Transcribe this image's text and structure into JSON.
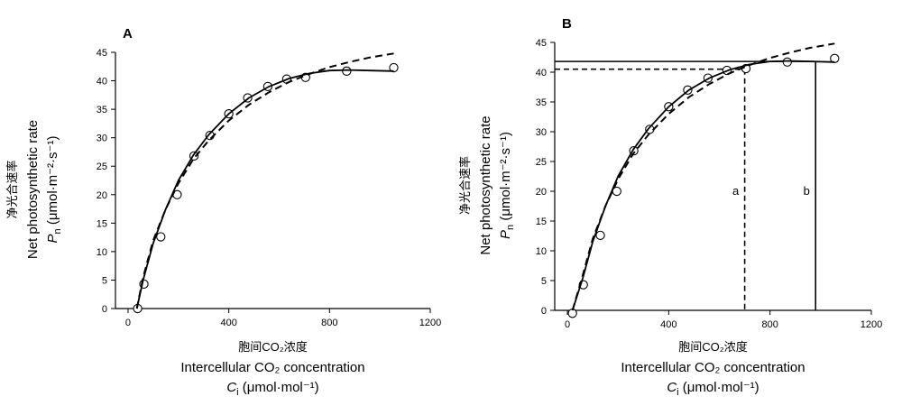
{
  "chart_data": [
    {
      "type": "line",
      "panel_label": "A",
      "xlabel_cn": "胞间CO₂浓度",
      "xlabel_en": "Intercellular CO₂ concentration",
      "xlabel_sym": "C",
      "xlabel_sub": "i",
      "xlabel_unit": " (μmol·mol⁻¹)",
      "ylabel_cn": "净光合速率",
      "ylabel_en": "Net photosynthetic rate",
      "ylabel_sym": "P",
      "ylabel_sub": "n",
      "ylabel_unit": " (μmol·m⁻²·s⁻¹)",
      "xlim": [
        -50,
        1200
      ],
      "ylim": [
        0,
        45
      ],
      "xticks": [
        0,
        400,
        800,
        1200
      ],
      "xtick_labels": [
        "0",
        "400",
        "800",
        "1200"
      ],
      "yticks": [
        0,
        5,
        10,
        15,
        20,
        25,
        30,
        35,
        40,
        45
      ],
      "ytick_labels": [
        "0",
        "5",
        "10",
        "15",
        "20",
        "25",
        "30",
        "35",
        "40",
        "45"
      ],
      "series": [
        {
          "style": "points",
          "marker": "circle",
          "x": [
            38,
            63,
            130,
            195,
            262,
            325,
            400,
            475,
            555,
            630,
            705,
            868,
            1055
          ],
          "y": [
            0,
            4.3,
            12.6,
            20,
            26.8,
            30.4,
            34.2,
            37,
            39,
            40.3,
            40.6,
            41.7,
            42.3
          ]
        },
        {
          "style": "solid",
          "x": [
            35,
            60,
            100,
            150,
            200,
            260,
            320,
            400,
            480,
            560,
            640,
            720,
            800,
            880,
            960,
            1055
          ],
          "y": [
            0,
            5,
            11.5,
            17.5,
            22.5,
            27,
            30.5,
            34.2,
            37,
            39,
            40.4,
            41.3,
            41.8,
            41.9,
            41.8,
            41.7
          ]
        },
        {
          "style": "dashed",
          "x": [
            35,
            60,
            100,
            150,
            200,
            260,
            320,
            400,
            480,
            560,
            640,
            720,
            800,
            880,
            960,
            1055
          ],
          "y": [
            0,
            5.5,
            12,
            17.5,
            22,
            26.3,
            29.5,
            33,
            35.8,
            38,
            39.8,
            41.2,
            42.4,
            43.3,
            44.1,
            44.8
          ]
        }
      ]
    },
    {
      "type": "line",
      "panel_label": "B",
      "xlabel_cn": "胞间CO₂浓度",
      "xlabel_en": "Intercellular CO₂ concentration",
      "xlabel_sym": "C",
      "xlabel_sub": "i",
      "xlabel_unit": " (μmol·mol⁻¹)",
      "ylabel_cn": "净光合速率",
      "ylabel_en": "Net photosynthetic rate",
      "ylabel_sym": "P",
      "ylabel_sub": "n",
      "ylabel_unit": " (μmol·m⁻²·s⁻¹)",
      "xlim": [
        -50,
        1200
      ],
      "ylim": [
        0,
        45
      ],
      "xticks": [
        0,
        400,
        800,
        1200
      ],
      "xtick_labels": [
        "0",
        "400",
        "800",
        "1200"
      ],
      "yticks": [
        0,
        5,
        10,
        15,
        20,
        25,
        30,
        35,
        40,
        45
      ],
      "ytick_labels": [
        "0",
        "5",
        "10",
        "15",
        "20",
        "25",
        "30",
        "35",
        "40",
        "45"
      ],
      "series": [
        {
          "style": "points",
          "marker": "circle",
          "x": [
            20,
            63,
            130,
            195,
            262,
            325,
            400,
            475,
            555,
            630,
            705,
            868,
            1055
          ],
          "y": [
            -0.5,
            4.3,
            12.6,
            20,
            26.8,
            30.4,
            34.2,
            37,
            39,
            40.3,
            40.6,
            41.7,
            42.3
          ]
        },
        {
          "style": "solid",
          "x": [
            20,
            60,
            100,
            150,
            200,
            260,
            320,
            400,
            480,
            560,
            640,
            720,
            800,
            880,
            960,
            1055
          ],
          "y": [
            0,
            5.3,
            11.5,
            17.5,
            22.5,
            27,
            30.5,
            34.2,
            37,
            39,
            40.4,
            41.3,
            41.8,
            41.9,
            41.8,
            41.7
          ]
        },
        {
          "style": "dashed",
          "x": [
            20,
            60,
            100,
            150,
            200,
            260,
            320,
            400,
            480,
            560,
            640,
            720,
            800,
            880,
            960,
            1055
          ],
          "y": [
            0,
            5.8,
            12,
            17.5,
            22,
            26.3,
            29.5,
            33,
            35.8,
            38,
            39.8,
            41.2,
            42.4,
            43.3,
            44.1,
            44.8
          ]
        }
      ],
      "reference_lines": [
        {
          "style": "dashed",
          "label": "a",
          "x": 700,
          "y": 40.5
        },
        {
          "style": "solid",
          "label": "b",
          "x": 980,
          "y": 41.8
        }
      ]
    }
  ]
}
